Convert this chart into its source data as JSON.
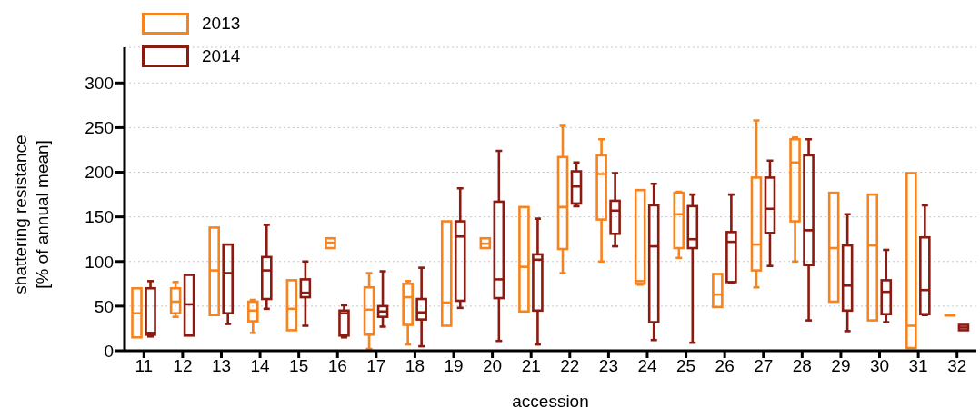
{
  "chart_data": {
    "type": "box",
    "xlabel": "accession",
    "ylabel": "shattering resistance [% of annual mean]",
    "categories": [
      "11",
      "12",
      "13",
      "14",
      "15",
      "16",
      "17",
      "18",
      "19",
      "20",
      "21",
      "22",
      "23",
      "24",
      "25",
      "26",
      "27",
      "28",
      "29",
      "30",
      "31",
      "32"
    ],
    "ylim": [
      0,
      340
    ],
    "yticks": [
      0,
      50,
      100,
      150,
      200,
      250,
      300
    ],
    "grid": "y",
    "legend": "top left",
    "series": [
      {
        "name": "2013",
        "color": "#f7831e",
        "boxes": [
          {
            "low": 15,
            "q1": 15,
            "median": 42,
            "q3": 70,
            "high": 70
          },
          {
            "low": 38,
            "q1": 42,
            "median": 55,
            "q3": 70,
            "high": 77
          },
          {
            "low": 40,
            "q1": 40,
            "median": 90,
            "q3": 138,
            "high": 138
          },
          {
            "low": 20,
            "q1": 33,
            "median": 45,
            "q3": 55,
            "high": 57
          },
          {
            "low": 23,
            "q1": 23,
            "median": 47,
            "q3": 79,
            "high": 79
          },
          {
            "low": 115,
            "q1": 115,
            "median": 121,
            "q3": 126,
            "high": 126
          },
          {
            "low": 2,
            "q1": 18,
            "median": 46,
            "q3": 71,
            "high": 87
          },
          {
            "low": 7,
            "q1": 29,
            "median": 60,
            "q3": 75,
            "high": 78
          },
          {
            "low": 28,
            "q1": 28,
            "median": 54,
            "q3": 145,
            "high": 145
          },
          {
            "low": 115,
            "q1": 115,
            "median": 120,
            "q3": 126,
            "high": 126
          },
          {
            "low": 44,
            "q1": 44,
            "median": 94,
            "q3": 161,
            "high": 161
          },
          {
            "low": 87,
            "q1": 114,
            "median": 161,
            "q3": 217,
            "high": 252
          },
          {
            "low": 100,
            "q1": 147,
            "median": 198,
            "q3": 219,
            "high": 237
          },
          {
            "low": 74,
            "q1": 75,
            "median": 78,
            "q3": 180,
            "high": 180
          },
          {
            "low": 104,
            "q1": 115,
            "median": 153,
            "q3": 177,
            "high": 178
          },
          {
            "low": 49,
            "q1": 49,
            "median": 63,
            "q3": 86,
            "high": 86
          },
          {
            "low": 71,
            "q1": 90,
            "median": 119,
            "q3": 194,
            "high": 258
          },
          {
            "low": 100,
            "q1": 145,
            "median": 211,
            "q3": 237,
            "high": 239
          },
          {
            "low": 55,
            "q1": 55,
            "median": 115,
            "q3": 177,
            "high": 177
          },
          {
            "low": 34,
            "q1": 34,
            "median": 118,
            "q3": 175,
            "high": 175
          },
          {
            "low": 3,
            "q1": 3,
            "median": 28,
            "q3": 199,
            "high": 199
          },
          {
            "low": 40,
            "q1": 40,
            "median": 40,
            "q3": 40,
            "high": 40
          }
        ]
      },
      {
        "name": "2014",
        "color": "#8b1a10",
        "boxes": [
          {
            "low": 16,
            "q1": 18,
            "median": 20,
            "q3": 70,
            "high": 78
          },
          {
            "low": 17,
            "q1": 17,
            "median": 52,
            "q3": 85,
            "high": 85
          },
          {
            "low": 30,
            "q1": 42,
            "median": 87,
            "q3": 119,
            "high": 119
          },
          {
            "low": 47,
            "q1": 58,
            "median": 90,
            "q3": 105,
            "high": 141
          },
          {
            "low": 28,
            "q1": 60,
            "median": 65,
            "q3": 80,
            "high": 100
          },
          {
            "low": 15,
            "q1": 17,
            "median": 42,
            "q3": 45,
            "high": 51
          },
          {
            "low": 27,
            "q1": 38,
            "median": 44,
            "q3": 50,
            "high": 89
          },
          {
            "low": 5,
            "q1": 35,
            "median": 43,
            "q3": 58,
            "high": 93
          },
          {
            "low": 48,
            "q1": 56,
            "median": 128,
            "q3": 145,
            "high": 182
          },
          {
            "low": 11,
            "q1": 59,
            "median": 80,
            "q3": 167,
            "high": 224
          },
          {
            "low": 7,
            "q1": 45,
            "median": 102,
            "q3": 108,
            "high": 148
          },
          {
            "low": 162,
            "q1": 165,
            "median": 184,
            "q3": 201,
            "high": 211
          },
          {
            "low": 117,
            "q1": 131,
            "median": 157,
            "q3": 168,
            "high": 199
          },
          {
            "low": 12,
            "q1": 32,
            "median": 117,
            "q3": 163,
            "high": 187
          },
          {
            "low": 9,
            "q1": 115,
            "median": 125,
            "q3": 162,
            "high": 175
          },
          {
            "low": 76,
            "q1": 77,
            "median": 122,
            "q3": 133,
            "high": 175
          },
          {
            "low": 95,
            "q1": 132,
            "median": 159,
            "q3": 194,
            "high": 213
          },
          {
            "low": 34,
            "q1": 96,
            "median": 135,
            "q3": 219,
            "high": 237
          },
          {
            "low": 22,
            "q1": 45,
            "median": 73,
            "q3": 118,
            "high": 153
          },
          {
            "low": 32,
            "q1": 41,
            "median": 66,
            "q3": 79,
            "high": 113
          },
          {
            "low": 40,
            "q1": 41,
            "median": 68,
            "q3": 127,
            "high": 163
          },
          {
            "low": 23,
            "q1": 23,
            "median": 26,
            "q3": 29,
            "high": 29
          }
        ]
      }
    ]
  }
}
